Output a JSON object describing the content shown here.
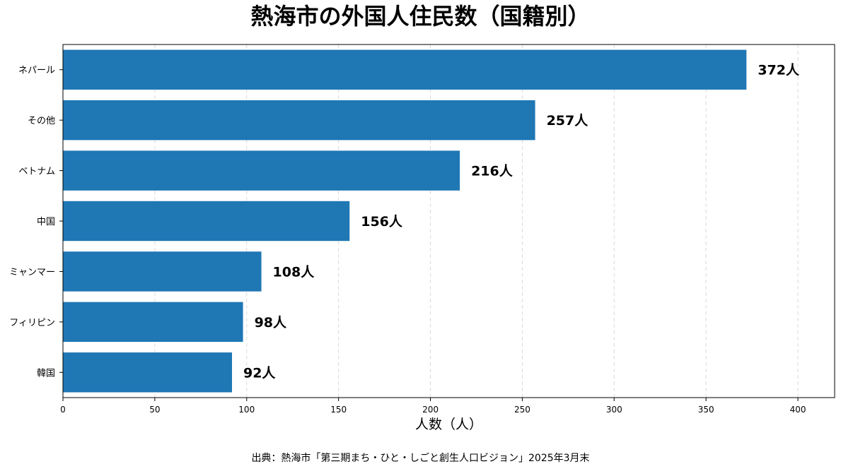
{
  "title": "熱海市の外国人住民数（国籍別）",
  "source_note": "出典：熱海市「第三期まち・ひと・しごと創生人口ビジョン」2025年3月末",
  "colors": {
    "bar": "#1f77b4",
    "grid": "#d9d9d9",
    "axis": "#000000"
  },
  "chart_data": {
    "type": "bar",
    "orientation": "horizontal",
    "title": "熱海市の外国人住民数（国籍別）",
    "xlabel": "人数（人）",
    "ylabel": "",
    "categories": [
      "ネパール",
      "その他",
      "ベトナム",
      "中国",
      "ミャンマー",
      "フィリピン",
      "韓国"
    ],
    "values": [
      372,
      257,
      216,
      156,
      108,
      98,
      92
    ],
    "data_labels": [
      "372人",
      "257人",
      "216人",
      "156人",
      "108人",
      "98人",
      "92人"
    ],
    "xlim": [
      0,
      420
    ],
    "xticks": [
      0,
      50,
      100,
      150,
      200,
      250,
      300,
      350,
      400
    ],
    "grid": "vertical dashed",
    "legend": "none"
  }
}
